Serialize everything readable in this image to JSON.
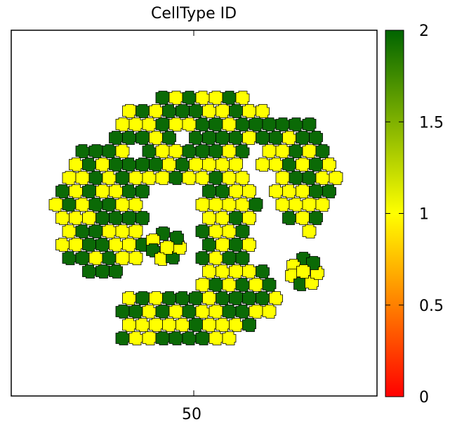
{
  "chart_data": {
    "type": "heatmap",
    "title": "CellType ID",
    "x_tick_labels": [
      "50"
    ],
    "colorbar": {
      "range": [
        0,
        2
      ],
      "ticks": [
        0,
        0.5,
        1,
        1.5,
        2
      ],
      "tick_labels": [
        "0",
        "0.5",
        "1",
        "1.5",
        "2"
      ],
      "color_stops": [
        {
          "value": 0,
          "color": "#ff0000"
        },
        {
          "value": 1,
          "color": "#ffff00"
        },
        {
          "value": 2,
          "color": "#006400"
        }
      ]
    },
    "cell_types": [
      {
        "value": 1,
        "color": "#ffff00"
      },
      {
        "value": 2,
        "color": "#0b6a06"
      }
    ],
    "cell_outline_color": "#000000"
  }
}
